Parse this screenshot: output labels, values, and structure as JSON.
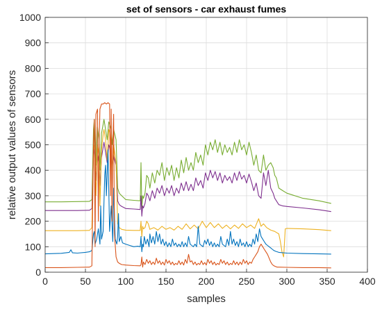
{
  "chart_data": {
    "type": "line",
    "title": "set of sensors - car exhaust fumes",
    "xlabel": "samples",
    "ylabel": "relative output values of sensors",
    "xlim": [
      0,
      400
    ],
    "ylim": [
      0,
      1000
    ],
    "xticks": [
      0,
      50,
      100,
      150,
      200,
      250,
      300,
      350,
      400
    ],
    "yticks": [
      0,
      100,
      200,
      300,
      400,
      500,
      600,
      700,
      800,
      900,
      1000
    ],
    "grid": true,
    "legend": "none",
    "series": [
      {
        "color": "#77ac30",
        "x": [
          0,
          20,
          40,
          55,
          58,
          60,
          61,
          63,
          65,
          67,
          68,
          70,
          72,
          73,
          75,
          77,
          79,
          80,
          82,
          83,
          85,
          88,
          90,
          92,
          95,
          100,
          110,
          118,
          119,
          120,
          121,
          122,
          124,
          126,
          128,
          130,
          133,
          136,
          139,
          142,
          145,
          148,
          151,
          154,
          157,
          160,
          163,
          166,
          169,
          172,
          175,
          178,
          181,
          184,
          187,
          190,
          193,
          196,
          199,
          202,
          205,
          208,
          211,
          214,
          217,
          220,
          223,
          226,
          229,
          232,
          235,
          238,
          241,
          244,
          247,
          250,
          253,
          256,
          259,
          262,
          265,
          268,
          271,
          274,
          277,
          280,
          283,
          285,
          287,
          290,
          295,
          300,
          320,
          340,
          355
        ],
        "y": [
          276,
          276,
          277,
          278,
          285,
          560,
          600,
          420,
          570,
          520,
          400,
          545,
          580,
          600,
          560,
          520,
          590,
          580,
          560,
          500,
          560,
          520,
          330,
          310,
          300,
          285,
          282,
          280,
          430,
          250,
          300,
          290,
          310,
          380,
          370,
          330,
          390,
          350,
          400,
          380,
          430,
          360,
          410,
          380,
          420,
          360,
          410,
          370,
          440,
          390,
          450,
          400,
          430,
          400,
          470,
          430,
          460,
          420,
          500,
          460,
          510,
          480,
          520,
          470,
          510,
          460,
          500,
          470,
          490,
          460,
          510,
          470,
          520,
          480,
          500,
          460,
          510,
          470,
          420,
          460,
          400,
          390,
          460,
          400,
          420,
          430,
          410,
          380,
          370,
          330,
          320,
          310,
          290,
          280,
          270
        ]
      },
      {
        "color": "#7e2f8e",
        "x": [
          0,
          20,
          40,
          55,
          58,
          60,
          61,
          63,
          65,
          67,
          68,
          70,
          72,
          73,
          75,
          77,
          79,
          80,
          82,
          83,
          85,
          88,
          90,
          92,
          95,
          100,
          110,
          118,
          119,
          120,
          121,
          122,
          124,
          126,
          128,
          130,
          133,
          136,
          139,
          142,
          145,
          148,
          151,
          154,
          157,
          160,
          163,
          166,
          169,
          172,
          175,
          178,
          181,
          184,
          187,
          190,
          193,
          196,
          199,
          202,
          205,
          208,
          211,
          214,
          217,
          220,
          223,
          226,
          229,
          232,
          235,
          238,
          241,
          244,
          247,
          250,
          253,
          256,
          259,
          262,
          265,
          268,
          271,
          274,
          277,
          280,
          283,
          285,
          287,
          290,
          295,
          300,
          320,
          340,
          355
        ],
        "y": [
          242,
          242,
          242,
          243,
          250,
          460,
          490,
          360,
          470,
          430,
          340,
          450,
          490,
          510,
          470,
          430,
          500,
          490,
          460,
          410,
          460,
          420,
          280,
          265,
          258,
          250,
          248,
          246,
          300,
          220,
          260,
          252,
          270,
          310,
          300,
          280,
          320,
          290,
          330,
          310,
          340,
          300,
          330,
          310,
          340,
          300,
          330,
          310,
          350,
          320,
          355,
          320,
          345,
          320,
          370,
          340,
          360,
          330,
          390,
          360,
          400,
          370,
          395,
          360,
          390,
          350,
          380,
          360,
          375,
          350,
          390,
          360,
          395,
          365,
          380,
          350,
          385,
          355,
          320,
          350,
          300,
          290,
          390,
          340,
          400,
          330,
          310,
          290,
          280,
          265,
          260,
          258,
          252,
          245,
          238
        ]
      },
      {
        "color": "#edb120",
        "x": [
          0,
          20,
          40,
          55,
          58,
          60,
          61,
          63,
          65,
          67,
          68,
          70,
          72,
          73,
          75,
          77,
          79,
          80,
          82,
          83,
          85,
          88,
          90,
          92,
          95,
          100,
          110,
          118,
          119,
          120,
          121,
          122,
          124,
          126,
          128,
          130,
          135,
          140,
          145,
          150,
          155,
          160,
          165,
          170,
          175,
          180,
          185,
          190,
          195,
          200,
          205,
          210,
          215,
          220,
          225,
          230,
          235,
          240,
          245,
          250,
          255,
          260,
          265,
          268,
          271,
          275,
          280,
          285,
          290,
          292,
          294,
          296,
          298,
          300,
          320,
          340,
          355
        ],
        "y": [
          163,
          163,
          163,
          164,
          175,
          480,
          500,
          300,
          500,
          460,
          260,
          480,
          540,
          560,
          520,
          440,
          560,
          550,
          500,
          380,
          500,
          430,
          190,
          175,
          168,
          165,
          164,
          164,
          200,
          140,
          180,
          170,
          175,
          200,
          190,
          168,
          175,
          165,
          180,
          168,
          175,
          165,
          180,
          168,
          190,
          170,
          185,
          170,
          200,
          175,
          195,
          175,
          190,
          172,
          185,
          170,
          185,
          172,
          190,
          175,
          185,
          172,
          210,
          180,
          190,
          175,
          165,
          160,
          150,
          120,
          80,
          60,
          170,
          172,
          170,
          167,
          163
        ]
      },
      {
        "color": "#0072bd",
        "x": [
          0,
          20,
          30,
          32,
          34,
          40,
          50,
          55,
          58,
          60,
          61,
          62,
          64,
          66,
          68,
          69,
          70,
          72,
          74,
          75,
          76,
          78,
          80,
          82,
          84,
          85,
          87,
          89,
          90,
          91,
          92,
          94,
          96,
          100,
          105,
          110,
          115,
          118,
          119,
          120,
          121,
          122,
          123,
          125,
          127,
          129,
          130,
          132,
          134,
          136,
          138,
          140,
          142,
          144,
          146,
          148,
          150,
          152,
          154,
          156,
          158,
          160,
          162,
          164,
          166,
          168,
          170,
          172,
          174,
          176,
          178,
          180,
          182,
          184,
          186,
          188,
          190,
          192,
          194,
          196,
          198,
          200,
          202,
          204,
          206,
          208,
          210,
          212,
          214,
          216,
          218,
          220,
          222,
          224,
          226,
          228,
          230,
          232,
          234,
          236,
          238,
          240,
          242,
          244,
          246,
          248,
          250,
          252,
          254,
          256,
          258,
          260,
          262,
          264,
          266,
          268,
          270,
          272,
          274,
          276,
          278,
          280,
          282,
          284,
          286,
          288,
          290,
          300,
          320,
          340,
          355
        ],
        "y": [
          72,
          74,
          78,
          88,
          76,
          75,
          78,
          80,
          85,
          150,
          160,
          110,
          130,
          170,
          110,
          260,
          130,
          160,
          380,
          420,
          300,
          480,
          160,
          260,
          120,
          330,
          130,
          110,
          140,
          230,
          120,
          140,
          115,
          110,
          105,
          100,
          102,
          100,
          140,
          80,
          110,
          100,
          140,
          110,
          130,
          100,
          150,
          115,
          140,
          110,
          160,
          120,
          150,
          110,
          130,
          105,
          120,
          100,
          115,
          100,
          130,
          105,
          115,
          100,
          110,
          100,
          120,
          100,
          115,
          100,
          140,
          110,
          105,
          100,
          110,
          100,
          180,
          110,
          105,
          100,
          125,
          110,
          130,
          105,
          120,
          100,
          115,
          100,
          110,
          100,
          140,
          110,
          105,
          100,
          130,
          105,
          160,
          110,
          130,
          105,
          120,
          100,
          130,
          105,
          115,
          100,
          120,
          100,
          110,
          100,
          130,
          110,
          150,
          120,
          170,
          140,
          130,
          120,
          110,
          105,
          100,
          95,
          90,
          85,
          82,
          80,
          78,
          75,
          73,
          72,
          71
        ]
      },
      {
        "color": "#d95319",
        "x": [
          0,
          20,
          40,
          55,
          58,
          60,
          61,
          62,
          63,
          65,
          66,
          67,
          68,
          70,
          72,
          74,
          76,
          78,
          80,
          81,
          82,
          83,
          84,
          85,
          86,
          88,
          90,
          92,
          95,
          100,
          110,
          118,
          119,
          120,
          121,
          122,
          124,
          126,
          128,
          130,
          132,
          134,
          136,
          138,
          140,
          142,
          144,
          146,
          148,
          150,
          152,
          154,
          156,
          158,
          160,
          162,
          164,
          166,
          168,
          170,
          172,
          174,
          176,
          178,
          180,
          182,
          184,
          186,
          188,
          190,
          192,
          194,
          196,
          198,
          200,
          202,
          204,
          206,
          208,
          210,
          212,
          214,
          216,
          218,
          220,
          222,
          224,
          226,
          228,
          230,
          232,
          234,
          236,
          238,
          240,
          242,
          244,
          246,
          248,
          250,
          252,
          254,
          256,
          258,
          260,
          262,
          264,
          266,
          268,
          270,
          272,
          274,
          276,
          278,
          280,
          282,
          284,
          286,
          288,
          290,
          300,
          320,
          340,
          355
        ],
        "y": [
          18,
          18,
          19,
          20,
          25,
          500,
          600,
          100,
          620,
          640,
          200,
          500,
          640,
          660,
          660,
          665,
          660,
          665,
          660,
          300,
          640,
          200,
          500,
          620,
          150,
          60,
          40,
          35,
          30,
          28,
          26,
          25,
          30,
          60,
          20,
          40,
          30,
          50,
          35,
          45,
          30,
          40,
          30,
          55,
          35,
          45,
          30,
          40,
          28,
          50,
          35,
          45,
          30,
          40,
          28,
          35,
          30,
          45,
          30,
          40,
          28,
          50,
          35,
          70,
          40,
          45,
          30,
          40,
          28,
          35,
          30,
          45,
          30,
          38,
          28,
          50,
          35,
          45,
          30,
          40,
          28,
          35,
          30,
          50,
          35,
          45,
          30,
          40,
          28,
          35,
          30,
          45,
          30,
          40,
          28,
          40,
          30,
          50,
          35,
          45,
          30,
          40,
          35,
          50,
          60,
          70,
          80,
          100,
          110,
          100,
          90,
          80,
          70,
          55,
          40,
          30,
          25,
          22,
          20,
          20,
          19,
          18,
          18,
          17
        ]
      }
    ]
  }
}
